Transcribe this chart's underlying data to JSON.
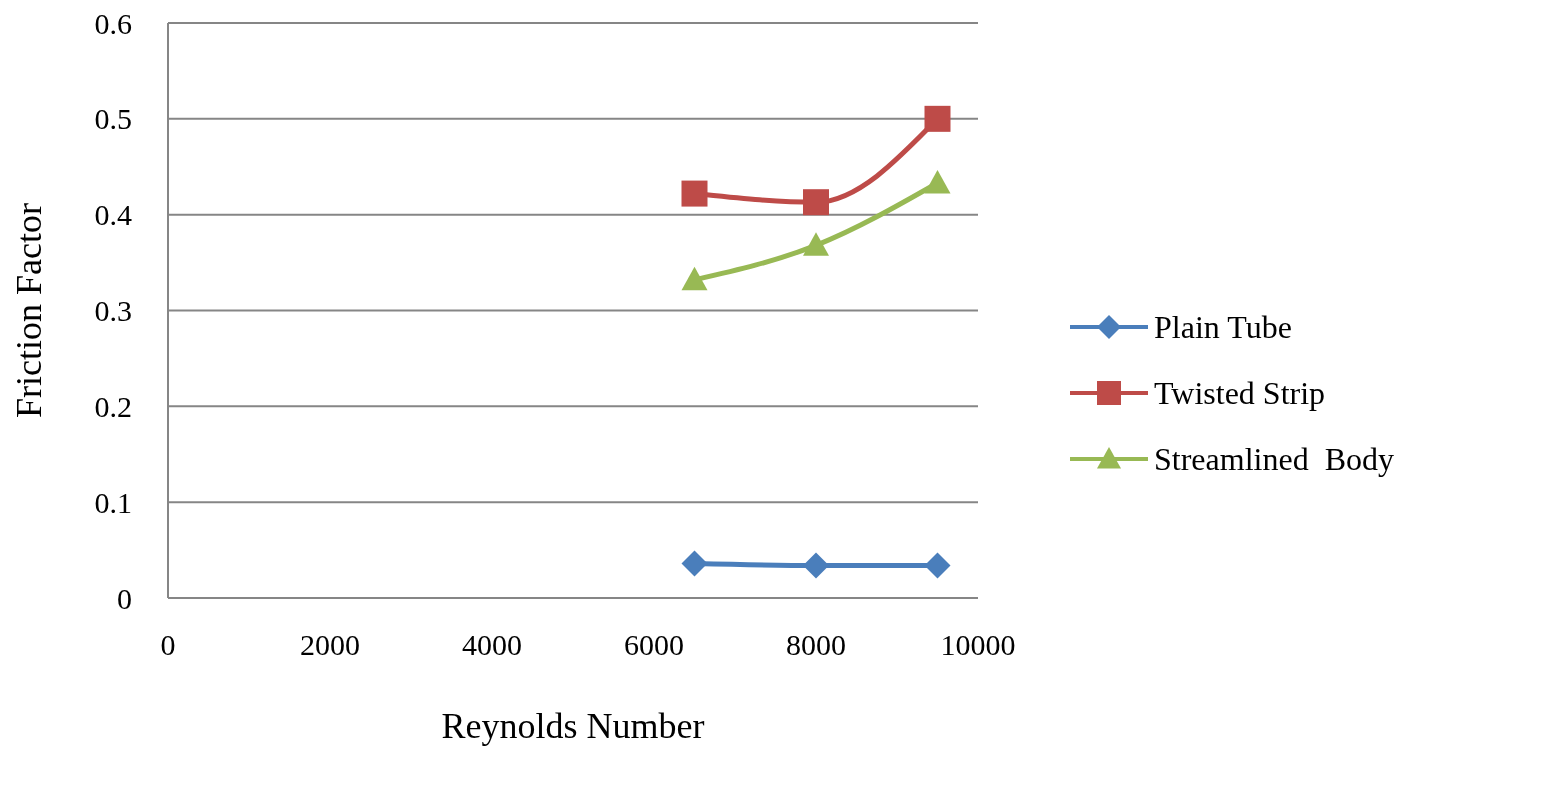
{
  "chart_data": {
    "type": "line",
    "xlabel": "Reynolds Number",
    "ylabel": "Friction Factor",
    "x": [
      6500,
      8000,
      9500
    ],
    "series": [
      {
        "name": "Plain Tube",
        "color": "#4a7ebb",
        "marker": "diamond",
        "values": [
          0.036,
          0.034,
          0.034
        ]
      },
      {
        "name": "Twisted Strip",
        "color": "#be4b48",
        "marker": "square",
        "values": [
          0.422,
          0.413,
          0.5
        ]
      },
      {
        "name": "Streamlined  Body",
        "color": "#98b954",
        "marker": "triangle",
        "values": [
          0.332,
          0.368,
          0.433
        ]
      }
    ],
    "xlim": [
      0,
      10000
    ],
    "xticks": [
      0,
      2000,
      4000,
      6000,
      8000,
      10000
    ],
    "ylim": [
      0,
      0.6
    ],
    "yticks": [
      0,
      0.1,
      0.2,
      0.3,
      0.4,
      0.5,
      0.6
    ],
    "grid": "y",
    "legend": "right"
  }
}
